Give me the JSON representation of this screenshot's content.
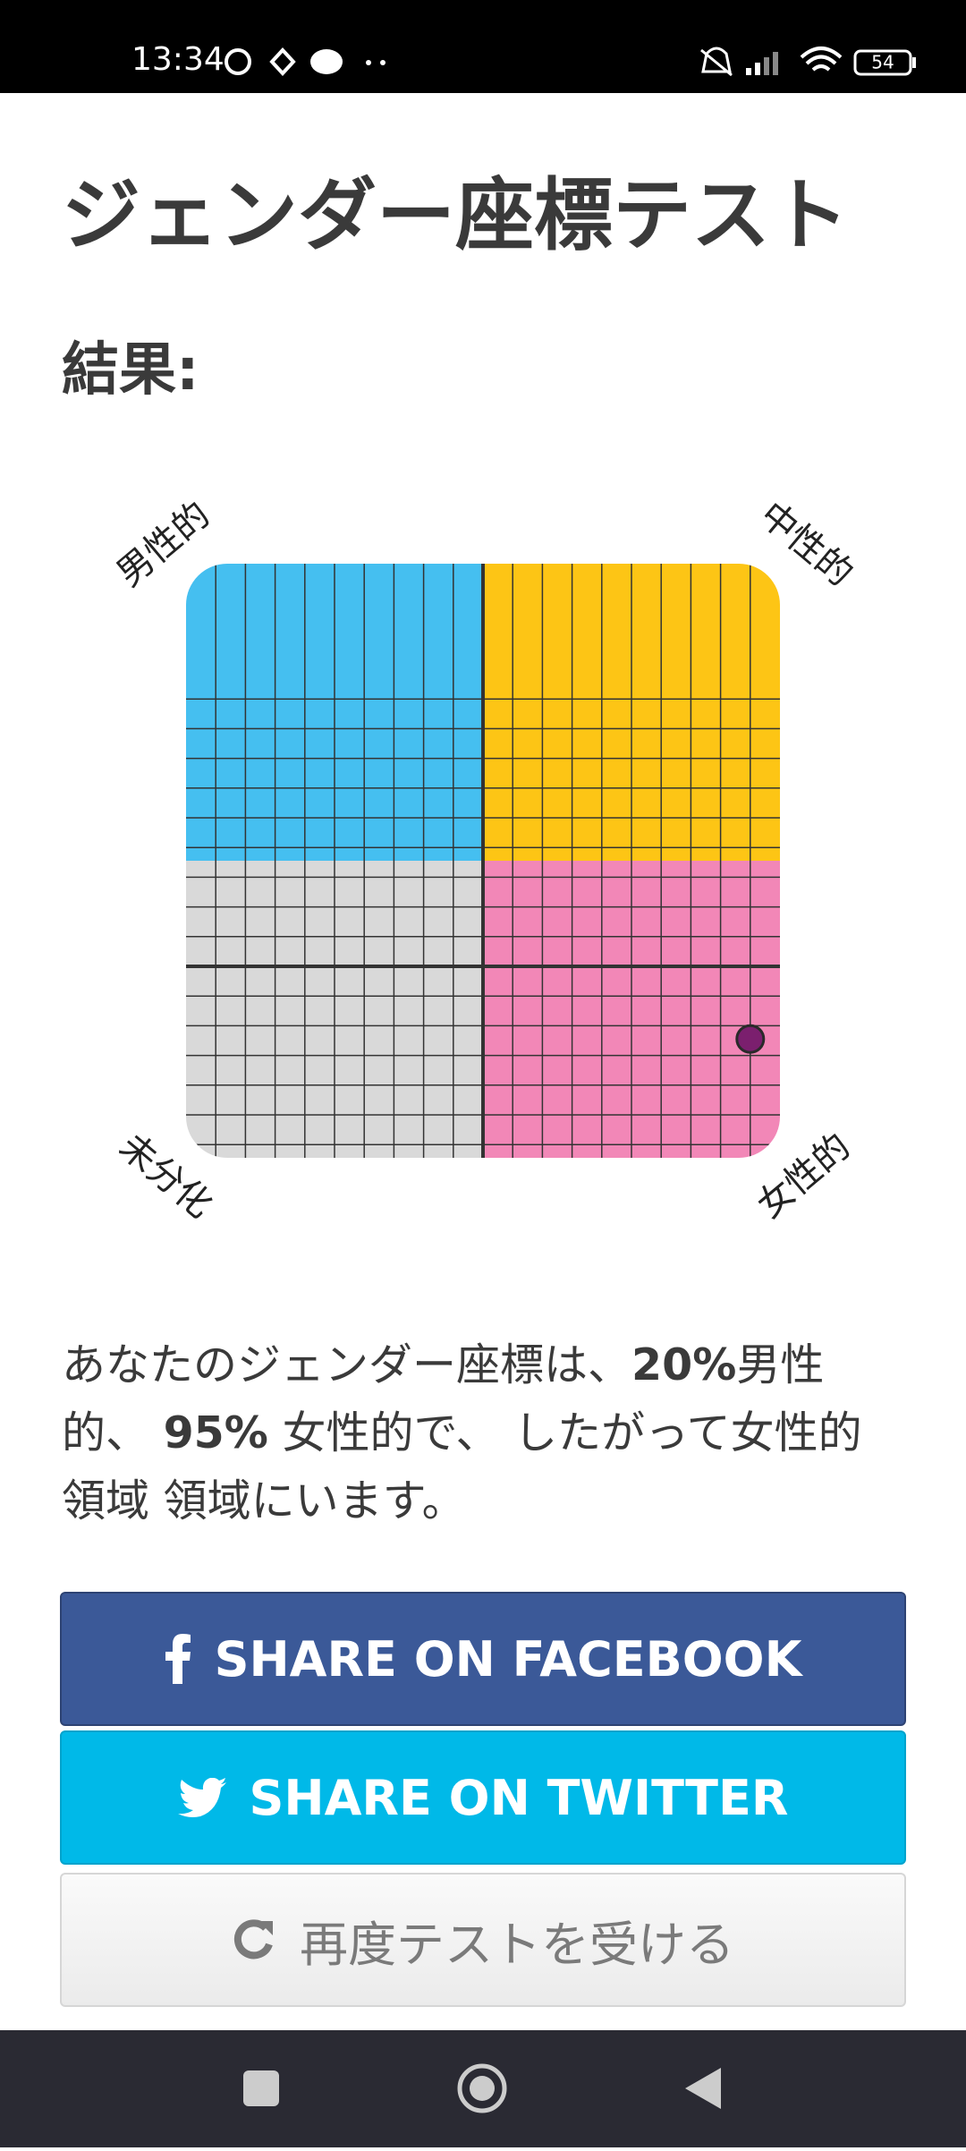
{
  "status_bar": {
    "time": "13:34",
    "battery": "54"
  },
  "header": {
    "title": "ジェンダー座標テスト",
    "subtitle": "結果:"
  },
  "chart": {
    "quadrant_labels": {
      "top_left": "男性的",
      "top_right": "中性的",
      "bottom_left": "未分化",
      "bottom_right": "女性的"
    },
    "result": {
      "masculine": {
        "value": 20,
        "label": "20%"
      },
      "feminine": {
        "value": 95,
        "label": "95%"
      }
    }
  },
  "result_text": {
    "part1": "あなたのジェンダー座標は、",
    "part2": "男性的、 ",
    "part3": " 女性的で、 したがって女性的領域 領域にいます。"
  },
  "buttons": {
    "facebook": "SHARE ON FACEBOOK",
    "twitter": "SHARE ON TWITTER",
    "retake": "再度テストを受ける"
  }
}
